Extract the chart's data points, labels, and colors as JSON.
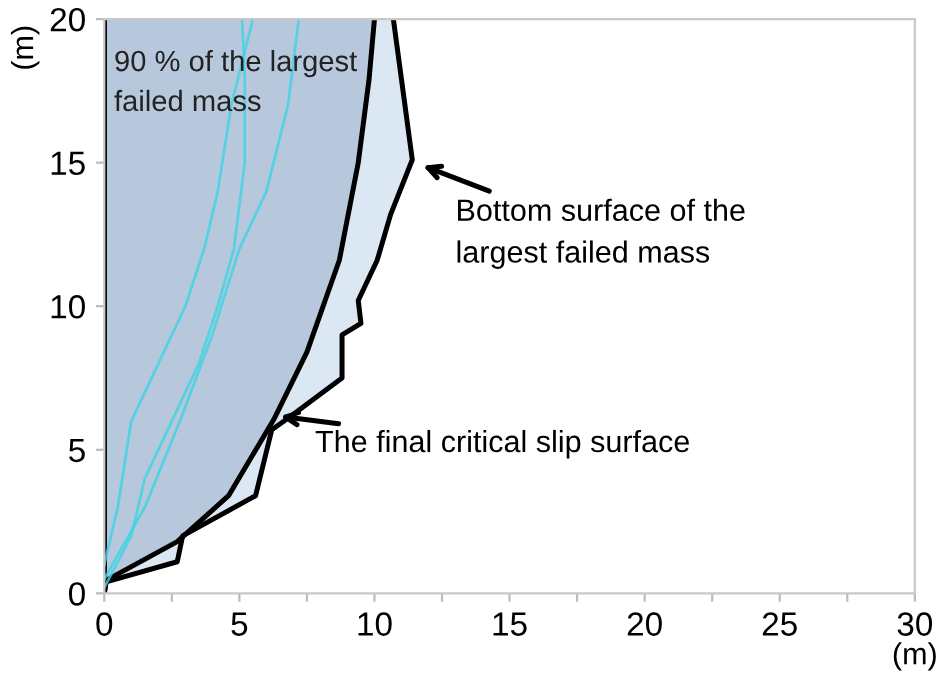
{
  "chart_data": {
    "type": "line",
    "xlabel": "(m)",
    "ylabel": "(m)",
    "xlim": [
      0,
      30
    ],
    "ylim": [
      0,
      20
    ],
    "xticks": [
      0,
      {
        "value": 2.5,
        "label": null
      },
      5,
      {
        "value": 7.5,
        "label": null
      },
      10,
      {
        "value": 12.5,
        "label": null
      },
      15,
      {
        "value": 17.5,
        "label": null
      },
      20,
      {
        "value": 22.5,
        "label": null
      },
      25,
      {
        "value": 27.5,
        "label": null
      },
      30
    ],
    "yticks": [
      0,
      5,
      10,
      15,
      20
    ],
    "grid": false,
    "legend": false,
    "series": [
      {
        "type": "area",
        "color": "#dbe8f4",
        "x": [
          0,
          0,
          0.07,
          2.7,
          2.9,
          5.6,
          6.2,
          6.8,
          8.8,
          8.8,
          9.5,
          9.4,
          10.1,
          10.6,
          11.4,
          11.0,
          10.7
        ],
        "values": [
          20,
          0,
          0.4,
          1.1,
          2.0,
          3.4,
          5.7,
          6.1,
          7.5,
          9.0,
          9.4,
          10.2,
          11.6,
          13.2,
          15.1,
          17.9,
          20
        ]
      },
      {
        "type": "area",
        "color": "#b7c8dd",
        "x": [
          0,
          0,
          0.07,
          2.7,
          4.6,
          6.3,
          7.5,
          8.7,
          9.4,
          9.8,
          10.0
        ],
        "values": [
          20,
          0,
          0.45,
          1.8,
          3.4,
          6.1,
          8.4,
          11.6,
          15.0,
          17.9,
          20
        ]
      },
      {
        "color": "#3fd3e3",
        "x": [
          0,
          1,
          1.5,
          2.5,
          3.5,
          4.2,
          4.8,
          5.2,
          5.2,
          5.1
        ],
        "values": [
          0.2,
          2,
          4,
          6,
          8,
          10,
          12,
          15,
          18,
          20
        ]
      },
      {
        "color": "#3fd3e3",
        "x": [
          0,
          1.5,
          2.8,
          4,
          5,
          6,
          6.8,
          7.2
        ],
        "values": [
          0.5,
          3,
          6,
          9,
          12,
          14,
          17,
          20
        ]
      },
      {
        "color": "#3fd3e3",
        "x": [
          0,
          0.5,
          1,
          2,
          3,
          3.7,
          4.2,
          4.7,
          5.5
        ],
        "values": [
          1,
          3,
          6,
          8,
          10,
          12,
          14,
          17,
          20
        ]
      }
    ],
    "annotations": [
      "90 % of the largest\nfailed mass",
      {
        "text": "Bottom surface of the\nlargest failed mass",
        "x": 11.5,
        "y": 15.0
      },
      {
        "text": "The final critical slip surface",
        "x": 6.2,
        "y": 6.2
      }
    ]
  }
}
